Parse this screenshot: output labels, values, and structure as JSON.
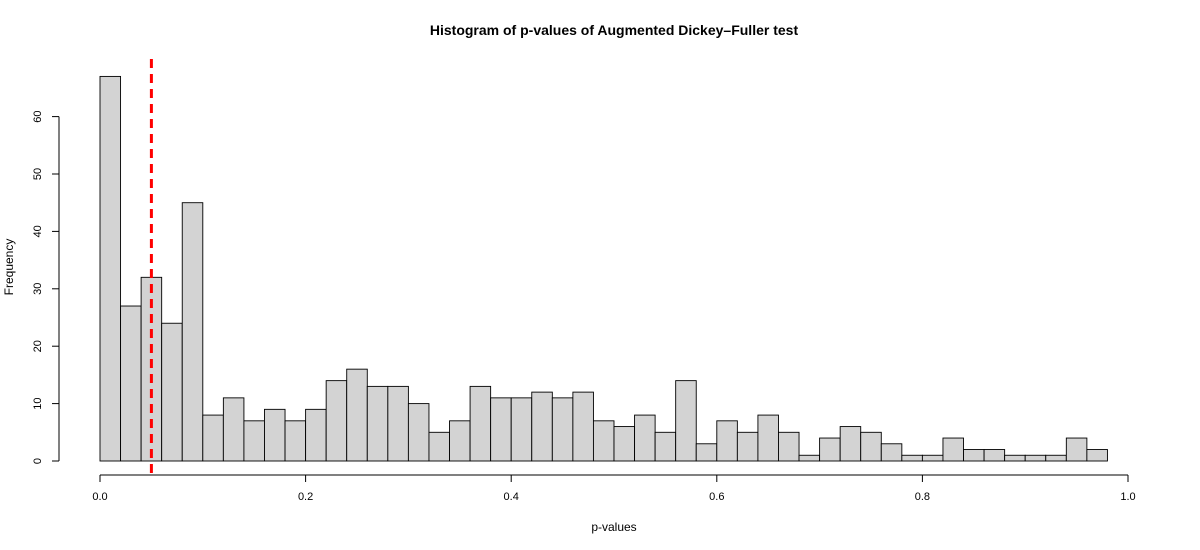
{
  "chart_data": {
    "type": "bar",
    "title": "Histogram of p-values of Augmented Dickey–Fuller test",
    "xlabel": "p-values",
    "ylabel": "Frequency",
    "xlim": [
      0,
      1
    ],
    "ylim": [
      0,
      70
    ],
    "xticks": [
      "0.0",
      "0.2",
      "0.4",
      "0.6",
      "0.8",
      "1.0"
    ],
    "xtick_values": [
      0,
      0.2,
      0.4,
      0.6,
      0.8,
      1.0
    ],
    "yticks": [
      "0",
      "10",
      "20",
      "30",
      "40",
      "50",
      "60"
    ],
    "ytick_values": [
      0,
      10,
      20,
      30,
      40,
      50,
      60
    ],
    "bin_width": 0.02,
    "bins_start": 0,
    "values": [
      67,
      27,
      32,
      24,
      45,
      8,
      11,
      7,
      9,
      7,
      9,
      14,
      16,
      13,
      13,
      10,
      5,
      7,
      13,
      11,
      11,
      12,
      11,
      12,
      7,
      6,
      8,
      5,
      14,
      3,
      7,
      5,
      8,
      5,
      1,
      4,
      6,
      5,
      3,
      1,
      1,
      4,
      2,
      2,
      1,
      1,
      1,
      4,
      2
    ],
    "threshold_line": {
      "x": 0.05,
      "color": "#ff0000",
      "style": "dashed"
    },
    "bar_color": "#d3d3d3",
    "grid": false
  }
}
